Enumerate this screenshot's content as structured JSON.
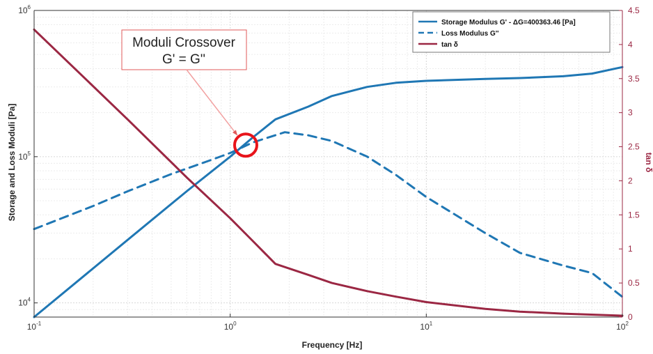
{
  "chart_data": {
    "type": "line",
    "xlabel": "Frequency [Hz]",
    "ylabel_left": "Storage and Loss Moduli [Pa]",
    "ylabel_right": "tan δ",
    "x_scale": "log",
    "y_left_scale": "log",
    "y_right_scale": "linear",
    "xlim": [
      0.1,
      100
    ],
    "ylim_left": [
      8000,
      1000000
    ],
    "ylim_right": [
      0,
      4.5
    ],
    "grid": true,
    "legend_position": "top-right",
    "x_ticks": [
      {
        "value": 0.1,
        "base": "10",
        "exp": "-1"
      },
      {
        "value": 1,
        "base": "10",
        "exp": "0"
      },
      {
        "value": 10,
        "base": "10",
        "exp": "1"
      },
      {
        "value": 100,
        "base": "10",
        "exp": "2"
      }
    ],
    "y_left_ticks": [
      {
        "value": 10000,
        "base": "10",
        "exp": "4"
      },
      {
        "value": 100000,
        "base": "10",
        "exp": "5"
      },
      {
        "value": 1000000,
        "base": "10",
        "exp": "6"
      }
    ],
    "y_right_ticks": [
      "0",
      "0.5",
      "1",
      "1.5",
      "2",
      "2.5",
      "3",
      "3.5",
      "4",
      "4.5"
    ],
    "series": [
      {
        "name": "Storage Modulus G' - ΔG=400363.46 [Pa]",
        "axis": "left",
        "color": "#1f77b4",
        "style": "solid",
        "points": [
          [
            0.1,
            8000
          ],
          [
            0.3,
            27000
          ],
          [
            0.6,
            58000
          ],
          [
            1.0,
            100000
          ],
          [
            1.3,
            135000
          ],
          [
            1.7,
            180000
          ],
          [
            2.5,
            220000
          ],
          [
            3.3,
            260000
          ],
          [
            5,
            300000
          ],
          [
            7,
            320000
          ],
          [
            10,
            330000
          ],
          [
            20,
            340000
          ],
          [
            30,
            345000
          ],
          [
            50,
            355000
          ],
          [
            70,
            370000
          ],
          [
            100,
            410000
          ]
        ]
      },
      {
        "name": "Loss Modulus G''",
        "axis": "left",
        "color": "#1f77b4",
        "style": "dashed",
        "points": [
          [
            0.1,
            32000
          ],
          [
            0.2,
            46000
          ],
          [
            0.3,
            58000
          ],
          [
            0.5,
            76000
          ],
          [
            0.8,
            95000
          ],
          [
            1.0,
            106000
          ],
          [
            1.3,
            125000
          ],
          [
            1.9,
            147000
          ],
          [
            2.5,
            140000
          ],
          [
            3.3,
            128000
          ],
          [
            5,
            100000
          ],
          [
            7,
            75000
          ],
          [
            10,
            53000
          ],
          [
            20,
            30000
          ],
          [
            30,
            22000
          ],
          [
            50,
            18000
          ],
          [
            70,
            16000
          ],
          [
            100,
            11000
          ]
        ]
      },
      {
        "name": "tan δ",
        "axis": "right",
        "color": "#9b2743",
        "style": "solid",
        "points": [
          [
            0.1,
            4.22
          ],
          [
            0.3,
            2.9
          ],
          [
            0.6,
            2.05
          ],
          [
            1.0,
            1.45
          ],
          [
            1.3,
            1.12
          ],
          [
            1.7,
            0.78
          ],
          [
            2.5,
            0.62
          ],
          [
            3.3,
            0.5
          ],
          [
            5,
            0.38
          ],
          [
            7,
            0.3
          ],
          [
            10,
            0.22
          ],
          [
            20,
            0.12
          ],
          [
            30,
            0.08
          ],
          [
            50,
            0.05
          ],
          [
            100,
            0.02
          ]
        ]
      }
    ],
    "annotation": {
      "line1": "Moduli Crossover",
      "line2": "G' = G''",
      "target_x": 1.2,
      "target_y": 120000
    }
  }
}
